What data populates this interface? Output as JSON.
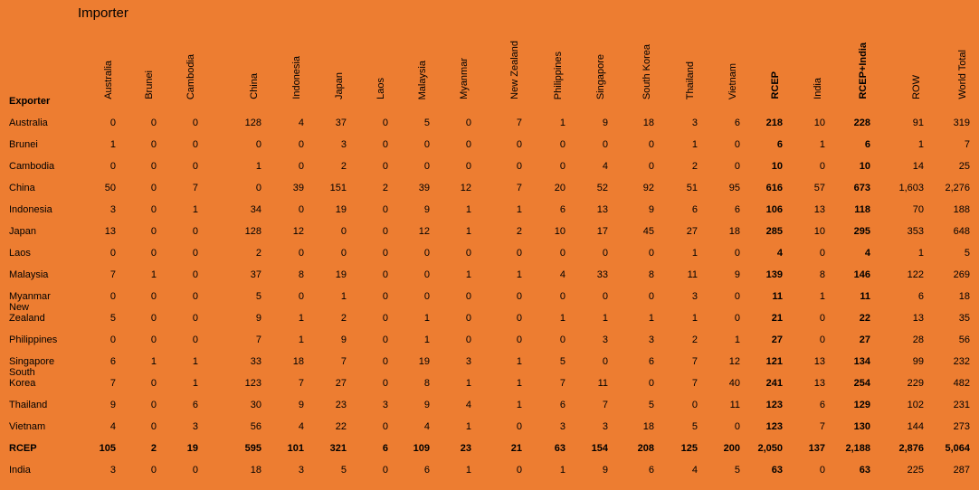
{
  "title": "Importer",
  "row_header": "Exporter",
  "columns": [
    "Australia",
    "Brunei",
    "Cambodia",
    "China",
    "Indonesia",
    "Japan",
    "Laos",
    "Malaysia",
    "Myanmar",
    "New Zealand",
    "Philippines",
    "Singapore",
    "South Korea",
    "Thailand",
    "Vietnam",
    "RCEP",
    "India",
    "RCEP+India",
    "ROW",
    "World Total"
  ],
  "rows": [
    {
      "label": "Australia",
      "cells": [
        0,
        0,
        0,
        128,
        4,
        37,
        0,
        5,
        0,
        7,
        1,
        9,
        18,
        3,
        6,
        218,
        10,
        228,
        91,
        319
      ]
    },
    {
      "label": "Brunei",
      "cells": [
        1,
        0,
        0,
        0,
        0,
        3,
        0,
        0,
        0,
        0,
        0,
        0,
        0,
        1,
        0,
        6,
        1,
        6,
        1,
        7
      ]
    },
    {
      "label": "Cambodia",
      "cells": [
        0,
        0,
        0,
        1,
        0,
        2,
        0,
        0,
        0,
        0,
        0,
        4,
        0,
        2,
        0,
        10,
        0,
        10,
        14,
        25
      ]
    },
    {
      "label": "China",
      "cells": [
        50,
        0,
        7,
        0,
        39,
        151,
        2,
        39,
        12,
        7,
        20,
        52,
        92,
        51,
        95,
        616,
        57,
        673,
        "1,603",
        "2,276"
      ]
    },
    {
      "label": "Indonesia",
      "cells": [
        3,
        0,
        1,
        34,
        0,
        19,
        0,
        9,
        1,
        1,
        6,
        13,
        9,
        6,
        6,
        106,
        13,
        118,
        70,
        188
      ]
    },
    {
      "label": "Japan",
      "cells": [
        13,
        0,
        0,
        128,
        12,
        0,
        0,
        12,
        1,
        2,
        10,
        17,
        45,
        27,
        18,
        285,
        10,
        295,
        353,
        648
      ]
    },
    {
      "label": "Laos",
      "cells": [
        0,
        0,
        0,
        2,
        0,
        0,
        0,
        0,
        0,
        0,
        0,
        0,
        0,
        1,
        0,
        4,
        0,
        4,
        1,
        5
      ]
    },
    {
      "label": "Malaysia",
      "cells": [
        7,
        1,
        0,
        37,
        8,
        19,
        0,
        0,
        1,
        1,
        4,
        33,
        8,
        11,
        9,
        139,
        8,
        146,
        122,
        269
      ]
    },
    {
      "label": "Myanmar",
      "cells": [
        0,
        0,
        0,
        5,
        0,
        1,
        0,
        0,
        0,
        0,
        0,
        0,
        0,
        3,
        0,
        11,
        1,
        11,
        6,
        18
      ]
    },
    {
      "label": "New Zealand",
      "cells": [
        5,
        0,
        0,
        9,
        1,
        2,
        0,
        1,
        0,
        0,
        1,
        1,
        1,
        1,
        0,
        21,
        0,
        22,
        13,
        35
      ]
    },
    {
      "label": "Philippines",
      "cells": [
        0,
        0,
        0,
        7,
        1,
        9,
        0,
        1,
        0,
        0,
        0,
        3,
        3,
        2,
        1,
        27,
        0,
        27,
        28,
        56
      ]
    },
    {
      "label": "Singapore",
      "cells": [
        6,
        1,
        1,
        33,
        18,
        7,
        0,
        19,
        3,
        1,
        5,
        0,
        6,
        7,
        12,
        121,
        13,
        134,
        99,
        232
      ]
    },
    {
      "label": "South Korea",
      "cells": [
        7,
        0,
        1,
        123,
        7,
        27,
        0,
        8,
        1,
        1,
        7,
        11,
        0,
        7,
        40,
        241,
        13,
        254,
        229,
        482
      ]
    },
    {
      "label": "Thailand",
      "cells": [
        9,
        0,
        6,
        30,
        9,
        23,
        3,
        9,
        4,
        1,
        6,
        7,
        5,
        0,
        11,
        123,
        6,
        129,
        102,
        231
      ]
    },
    {
      "label": "Vietnam",
      "cells": [
        4,
        0,
        3,
        56,
        4,
        22,
        0,
        4,
        1,
        0,
        3,
        3,
        18,
        5,
        0,
        123,
        7,
        130,
        144,
        273
      ]
    },
    {
      "label": "RCEP",
      "cells": [
        105,
        2,
        19,
        595,
        101,
        321,
        6,
        109,
        23,
        21,
        63,
        154,
        208,
        125,
        200,
        "2,050",
        137,
        "2,188",
        "2,876",
        "5,064"
      ]
    },
    {
      "label": "India",
      "cells": [
        3,
        0,
        0,
        18,
        3,
        5,
        0,
        6,
        1,
        0,
        1,
        9,
        6,
        4,
        5,
        63,
        0,
        63,
        225,
        287
      ]
    }
  ]
}
